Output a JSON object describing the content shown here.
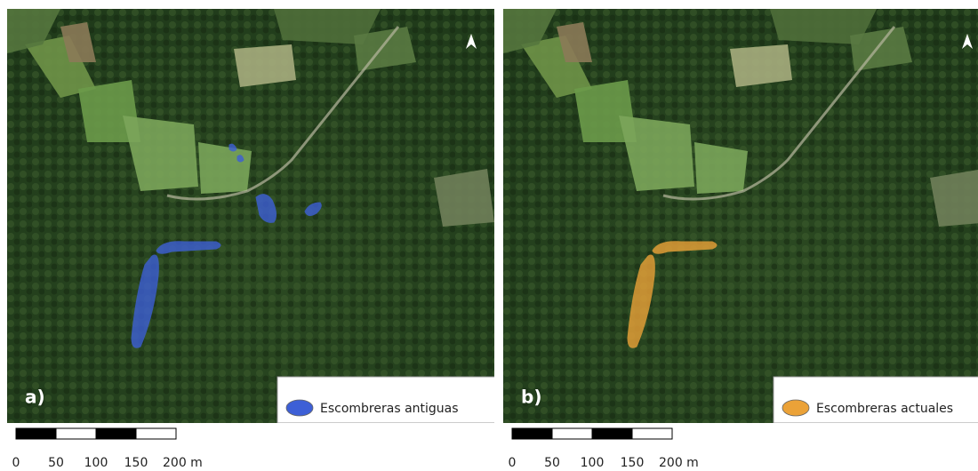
{
  "panels": [
    {
      "label": "a)",
      "legend": "Escombreras antiguas",
      "color": "#3d5fd6"
    },
    {
      "label": "b)",
      "legend": "Escombreras actuales",
      "color": "#eba238"
    }
  ],
  "scale_bar": [
    "0",
    "50",
    "100",
    "150",
    "200 m"
  ]
}
